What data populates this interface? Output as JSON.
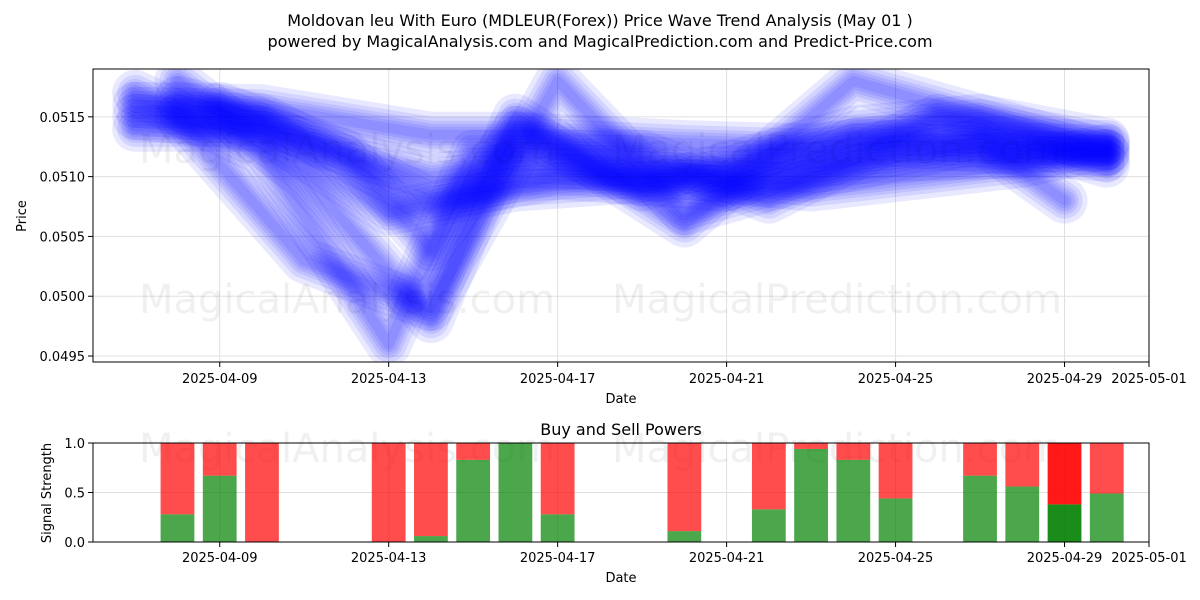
{
  "header": {
    "title_line1": "Moldovan leu With Euro (MDLEUR(Forex)) Price Wave Trend Analysis (May 01 )",
    "title_line2": "powered by MagicalAnalysis.com and MagicalPrediction.com and Predict-Price.com"
  },
  "watermarks": {
    "left": "MagicalAnalysis.com",
    "right": "MagicalPrediction.com"
  },
  "colors": {
    "wave": "#0000ff",
    "buy": "#008000",
    "sell": "#ff0000",
    "grid": "#e0e0e0"
  },
  "chart_data": [
    {
      "type": "line",
      "title": "",
      "xlabel": "Date",
      "ylabel": "Price",
      "xlim": [
        "2025-04-06",
        "2025-05-01"
      ],
      "ylim": [
        0.04945,
        0.0519
      ],
      "x_ticks": [
        "2025-04-09",
        "2025-04-13",
        "2025-04-17",
        "2025-04-21",
        "2025-04-25",
        "2025-04-29",
        "2025-05-01"
      ],
      "y_ticks": [
        0.0495,
        0.05,
        0.0505,
        0.051,
        0.0515
      ],
      "y_tick_labels": [
        "0.0495",
        "0.0500",
        "0.0505",
        "0.0510",
        "0.0515"
      ],
      "grid": true,
      "series": [
        {
          "x": [
            "2025-04-07",
            "2025-04-10",
            "2025-04-14",
            "2025-04-16",
            "2025-04-20",
            "2025-04-23",
            "2025-04-25",
            "2025-04-30"
          ],
          "values": [
            0.0516,
            0.05158,
            0.05135,
            0.05135,
            0.05128,
            0.05125,
            0.05133,
            0.05128
          ]
        },
        {
          "x": [
            "2025-04-07",
            "2025-04-10",
            "2025-04-14",
            "2025-04-16",
            "2025-04-20",
            "2025-04-23",
            "2025-04-25",
            "2025-04-30"
          ],
          "values": [
            0.0514,
            0.0514,
            0.051,
            0.0511,
            0.05105,
            0.0511,
            0.05115,
            0.0512
          ]
        },
        {
          "x": [
            "2025-04-08",
            "2025-04-10",
            "2025-04-14",
            "2025-04-17",
            "2025-04-21",
            "2025-04-24",
            "2025-04-28",
            "2025-04-30"
          ],
          "values": [
            0.05165,
            0.0515,
            0.0508,
            0.051,
            0.0509,
            0.0513,
            0.0512,
            0.05115
          ]
        },
        {
          "x": [
            "2025-04-08",
            "2025-04-11",
            "2025-04-14",
            "2025-04-16",
            "2025-04-20",
            "2025-04-24",
            "2025-04-28",
            "2025-04-30"
          ],
          "values": [
            0.0518,
            0.051,
            0.0498,
            0.0515,
            0.0506,
            0.0518,
            0.0514,
            0.0512
          ]
        },
        {
          "x": [
            "2025-04-07",
            "2025-04-10",
            "2025-04-13",
            "2025-04-15",
            "2025-04-19",
            "2025-04-22",
            "2025-04-26",
            "2025-04-30"
          ],
          "values": [
            0.0517,
            0.0512,
            0.0496,
            0.0512,
            0.0512,
            0.0508,
            0.0515,
            0.0511
          ]
        },
        {
          "x": [
            "2025-04-08",
            "2025-04-11",
            "2025-04-14",
            "2025-04-17",
            "2025-04-20",
            "2025-04-23",
            "2025-04-27",
            "2025-04-29"
          ],
          "values": [
            0.0515,
            0.0503,
            0.0499,
            0.0518,
            0.0507,
            0.051,
            0.0513,
            0.0508
          ]
        },
        {
          "x": [
            "2025-04-09",
            "2025-04-12",
            "2025-04-14",
            "2025-04-16",
            "2025-04-19",
            "2025-04-24",
            "2025-04-27",
            "2025-04-30"
          ],
          "values": [
            0.0516,
            0.0512,
            0.0504,
            0.0514,
            0.0509,
            0.0514,
            0.0515,
            0.0513
          ]
        },
        {
          "x": [
            "2025-04-07",
            "2025-04-10",
            "2025-04-13",
            "2025-04-16",
            "2025-04-20",
            "2025-04-23",
            "2025-04-28",
            "2025-04-30"
          ],
          "values": [
            0.0515,
            0.0514,
            0.0507,
            0.0509,
            0.051,
            0.0509,
            0.0511,
            0.05125
          ]
        }
      ]
    },
    {
      "type": "bar",
      "title": "Buy and Sell Powers",
      "xlabel": "Date",
      "ylabel": "Signal Strength",
      "xlim": [
        "2025-04-06",
        "2025-05-01"
      ],
      "ylim": [
        0,
        1.0
      ],
      "x_ticks": [
        "2025-04-09",
        "2025-04-13",
        "2025-04-17",
        "2025-04-21",
        "2025-04-25",
        "2025-04-29",
        "2025-05-01"
      ],
      "y_ticks": [
        0.0,
        0.5,
        1.0
      ],
      "y_tick_labels": [
        "0.0",
        "0.5",
        "1.0"
      ],
      "grid": true,
      "categories": [
        "2025-04-08",
        "2025-04-09",
        "2025-04-10",
        "2025-04-13",
        "2025-04-14",
        "2025-04-15",
        "2025-04-16",
        "2025-04-17",
        "2025-04-20",
        "2025-04-22",
        "2025-04-23",
        "2025-04-24",
        "2025-04-25",
        "2025-04-27",
        "2025-04-28",
        "2025-04-29",
        "2025-04-30"
      ],
      "series": [
        {
          "name": "Buy",
          "values": [
            0.28,
            0.67,
            0.0,
            0.0,
            0.06,
            0.83,
            1.0,
            0.28,
            0.11,
            0.33,
            0.94,
            0.83,
            0.44,
            0.67,
            0.56,
            0.38,
            0.49
          ]
        },
        {
          "name": "Sell",
          "values": [
            0.72,
            0.33,
            1.0,
            1.0,
            0.94,
            0.17,
            0.0,
            0.72,
            0.89,
            0.67,
            0.06,
            0.17,
            0.56,
            0.33,
            0.44,
            0.62,
            0.51
          ]
        }
      ]
    }
  ]
}
